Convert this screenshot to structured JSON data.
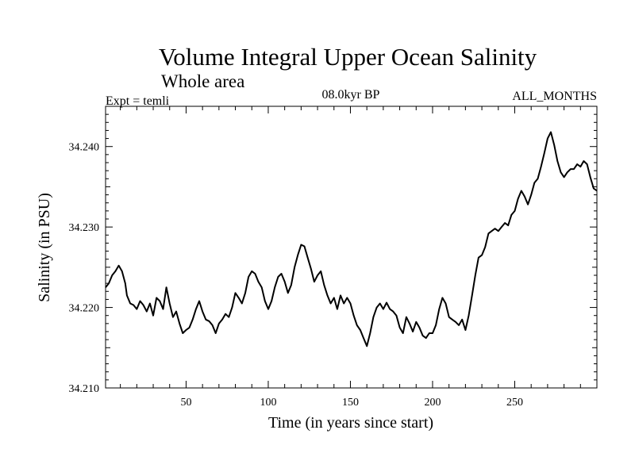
{
  "chart_data": {
    "type": "line",
    "title": "Volume Integral Upper Ocean Salinity",
    "subtitle": "Whole area",
    "left_label": "Expt = temli",
    "center_label": "08.0kyr BP",
    "right_label": "ALL_MONTHS",
    "xlabel": "Time (in years since start)",
    "ylabel": "Salinity (in PSU)",
    "xlim": [
      1,
      300
    ],
    "ylim": [
      34.21,
      34.245
    ],
    "xticks": [
      50,
      100,
      150,
      200,
      250
    ],
    "yticks": [
      34.21,
      34.22,
      34.23,
      34.24
    ],
    "ytick_labels": [
      "34.210",
      "34.220",
      "34.230",
      "34.240"
    ],
    "series": [
      {
        "name": "salinity",
        "color": "#000000",
        "x": [
          1,
          3,
          5,
          7,
          9,
          11,
          13,
          14,
          16,
          18,
          20,
          22,
          24,
          26,
          28,
          30,
          32,
          34,
          36,
          38,
          40,
          42,
          44,
          46,
          48,
          50,
          52,
          54,
          56,
          58,
          60,
          62,
          64,
          66,
          68,
          70,
          72,
          74,
          76,
          78,
          80,
          82,
          84,
          86,
          88,
          90,
          92,
          94,
          96,
          98,
          100,
          102,
          104,
          106,
          108,
          110,
          112,
          114,
          116,
          118,
          120,
          122,
          124,
          126,
          128,
          130,
          132,
          134,
          136,
          138,
          140,
          142,
          144,
          146,
          148,
          150,
          152,
          154,
          156,
          158,
          160,
          162,
          164,
          166,
          168,
          170,
          172,
          174,
          176,
          178,
          180,
          182,
          184,
          186,
          188,
          190,
          192,
          194,
          196,
          198,
          200,
          202,
          204,
          206,
          208,
          210,
          212,
          214,
          216,
          218,
          220,
          222,
          224,
          226,
          228,
          230,
          232,
          234,
          236,
          238,
          240,
          242,
          244,
          246,
          248,
          250,
          252,
          254,
          256,
          258,
          260,
          262,
          264,
          266,
          268,
          270,
          272,
          274,
          276,
          278,
          280,
          282,
          284,
          286,
          288,
          290,
          292,
          294,
          296,
          298,
          300
        ],
        "y": [
          34.2225,
          34.223,
          34.224,
          34.2245,
          34.2252,
          34.2245,
          34.223,
          34.2215,
          34.2205,
          34.2203,
          34.2198,
          34.2208,
          34.2203,
          34.2195,
          34.2205,
          34.219,
          34.2212,
          34.2208,
          34.2198,
          34.2225,
          34.2205,
          34.2188,
          34.2195,
          34.218,
          34.2168,
          34.2172,
          34.2175,
          34.2185,
          34.2198,
          34.2208,
          34.2195,
          34.2185,
          34.2183,
          34.2178,
          34.2168,
          34.218,
          34.2185,
          34.2192,
          34.2188,
          34.22,
          34.2218,
          34.2212,
          34.2205,
          34.2218,
          34.2238,
          34.2245,
          34.2242,
          34.2232,
          34.2225,
          34.2208,
          34.2198,
          34.2208,
          34.2225,
          34.2238,
          34.2242,
          34.2232,
          34.2218,
          34.2228,
          34.225,
          34.2265,
          34.2278,
          34.2276,
          34.2262,
          34.2248,
          34.2232,
          34.224,
          34.2245,
          34.2228,
          34.2215,
          34.2205,
          34.2212,
          34.2198,
          34.2215,
          34.2205,
          34.2212,
          34.2205,
          34.219,
          34.2178,
          34.2172,
          34.2162,
          34.2152,
          34.2168,
          34.2188,
          34.22,
          34.2205,
          34.2198,
          34.2206,
          34.2198,
          34.2195,
          34.219,
          34.2175,
          34.2168,
          34.2188,
          34.218,
          34.217,
          34.2182,
          34.2175,
          34.2165,
          34.2162,
          34.2168,
          34.2168,
          34.2178,
          34.2198,
          34.2212,
          34.2205,
          34.2188,
          34.2185,
          34.2182,
          34.2178,
          34.2185,
          34.2172,
          34.219,
          34.2215,
          34.224,
          34.2262,
          34.2265,
          34.2275,
          34.2292,
          34.2295,
          34.2298,
          34.2295,
          34.23,
          34.2305,
          34.2302,
          34.2315,
          34.232,
          34.2335,
          34.2345,
          34.2338,
          34.2328,
          34.234,
          34.2355,
          34.236,
          34.2375,
          34.2392,
          34.241,
          34.2418,
          34.2402,
          34.2382,
          34.2368,
          34.2362,
          34.2368,
          34.2372,
          34.2372,
          34.2378,
          34.2375,
          34.2382,
          34.2378,
          34.2362,
          34.2348,
          34.2345
        ]
      }
    ]
  }
}
